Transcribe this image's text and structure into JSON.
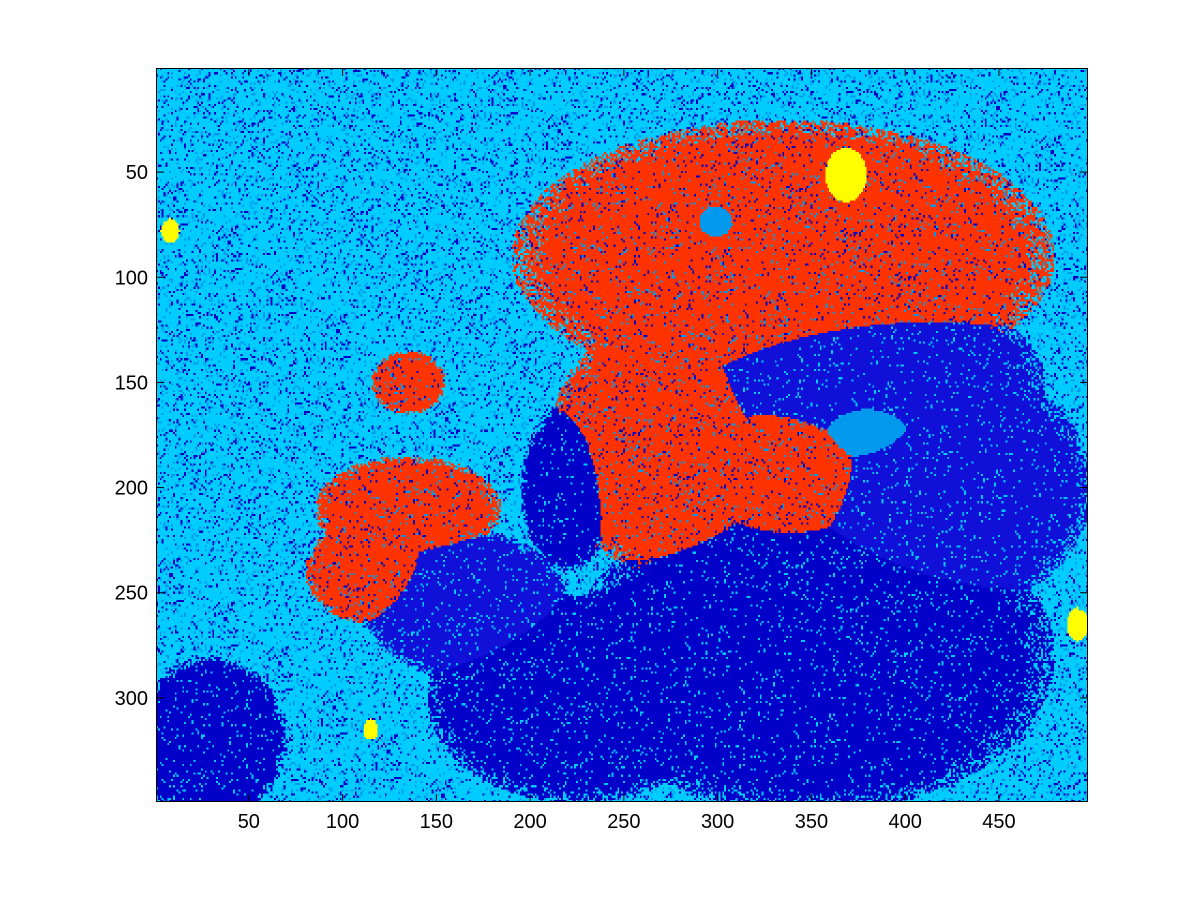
{
  "chart_data": {
    "type": "heatmap",
    "title": "",
    "xlabel": "",
    "ylabel": "",
    "x_ticks": [
      50,
      100,
      150,
      200,
      250,
      300,
      350,
      400,
      450
    ],
    "x_tick_labels": [
      "50",
      "100",
      "150",
      "200",
      "250",
      "300",
      "350",
      "400",
      "450"
    ],
    "y_ticks": [
      50,
      100,
      150,
      200,
      250,
      300
    ],
    "y_tick_labels": [
      "50",
      "100",
      "150",
      "200",
      "250",
      "300"
    ],
    "xlim": [
      0.5,
      497.5
    ],
    "ylim": [
      0.5,
      349.5
    ],
    "y_axis_direction": "reversed",
    "image_columns": 497,
    "image_rows": 349,
    "colormap_levels": [
      "#0000C8",
      "#1010D8",
      "#00CCFF",
      "#0099EE",
      "#FF3300",
      "#FFFF00"
    ],
    "regions": [
      {
        "level": 0,
        "cx": 350,
        "cy": 280,
        "rx": 130,
        "ry": 75
      },
      {
        "level": 0,
        "cx": 225,
        "cy": 300,
        "rx": 80,
        "ry": 50
      },
      {
        "level": 0,
        "cx": 30,
        "cy": 320,
        "rx": 40,
        "ry": 40
      },
      {
        "level": 0,
        "cx": 220,
        "cy": 200,
        "rx": 25,
        "ry": 40
      },
      {
        "level": 1,
        "cx": 380,
        "cy": 150,
        "rx": 95,
        "ry": 45
      },
      {
        "level": 1,
        "cx": 165,
        "cy": 255,
        "rx": 55,
        "ry": 35
      },
      {
        "level": 1,
        "cx": 420,
        "cy": 200,
        "rx": 80,
        "ry": 60
      },
      {
        "level": 4,
        "cx": 335,
        "cy": 90,
        "rx": 145,
        "ry": 65
      },
      {
        "level": 4,
        "cx": 270,
        "cy": 180,
        "rx": 60,
        "ry": 60
      },
      {
        "level": 4,
        "cx": 340,
        "cy": 190,
        "rx": 50,
        "ry": 40
      },
      {
        "level": 4,
        "cx": 135,
        "cy": 210,
        "rx": 50,
        "ry": 25
      },
      {
        "level": 4,
        "cx": 115,
        "cy": 240,
        "rx": 35,
        "ry": 25
      },
      {
        "level": 4,
        "cx": 135,
        "cy": 150,
        "rx": 20,
        "ry": 15
      },
      {
        "level": 3,
        "cx": 300,
        "cy": 75,
        "rx": 25,
        "ry": 20
      },
      {
        "level": 3,
        "cx": 380,
        "cy": 170,
        "rx": 40,
        "ry": 25
      },
      {
        "level": 5,
        "cx": 368,
        "cy": 55,
        "rx": 18,
        "ry": 20
      },
      {
        "level": 5,
        "cx": 8,
        "cy": 78,
        "rx": 5,
        "ry": 6
      },
      {
        "level": 5,
        "cx": 492,
        "cy": 265,
        "rx": 6,
        "ry": 8
      },
      {
        "level": 5,
        "cx": 115,
        "cy": 315,
        "rx": 4,
        "ry": 5
      }
    ]
  }
}
